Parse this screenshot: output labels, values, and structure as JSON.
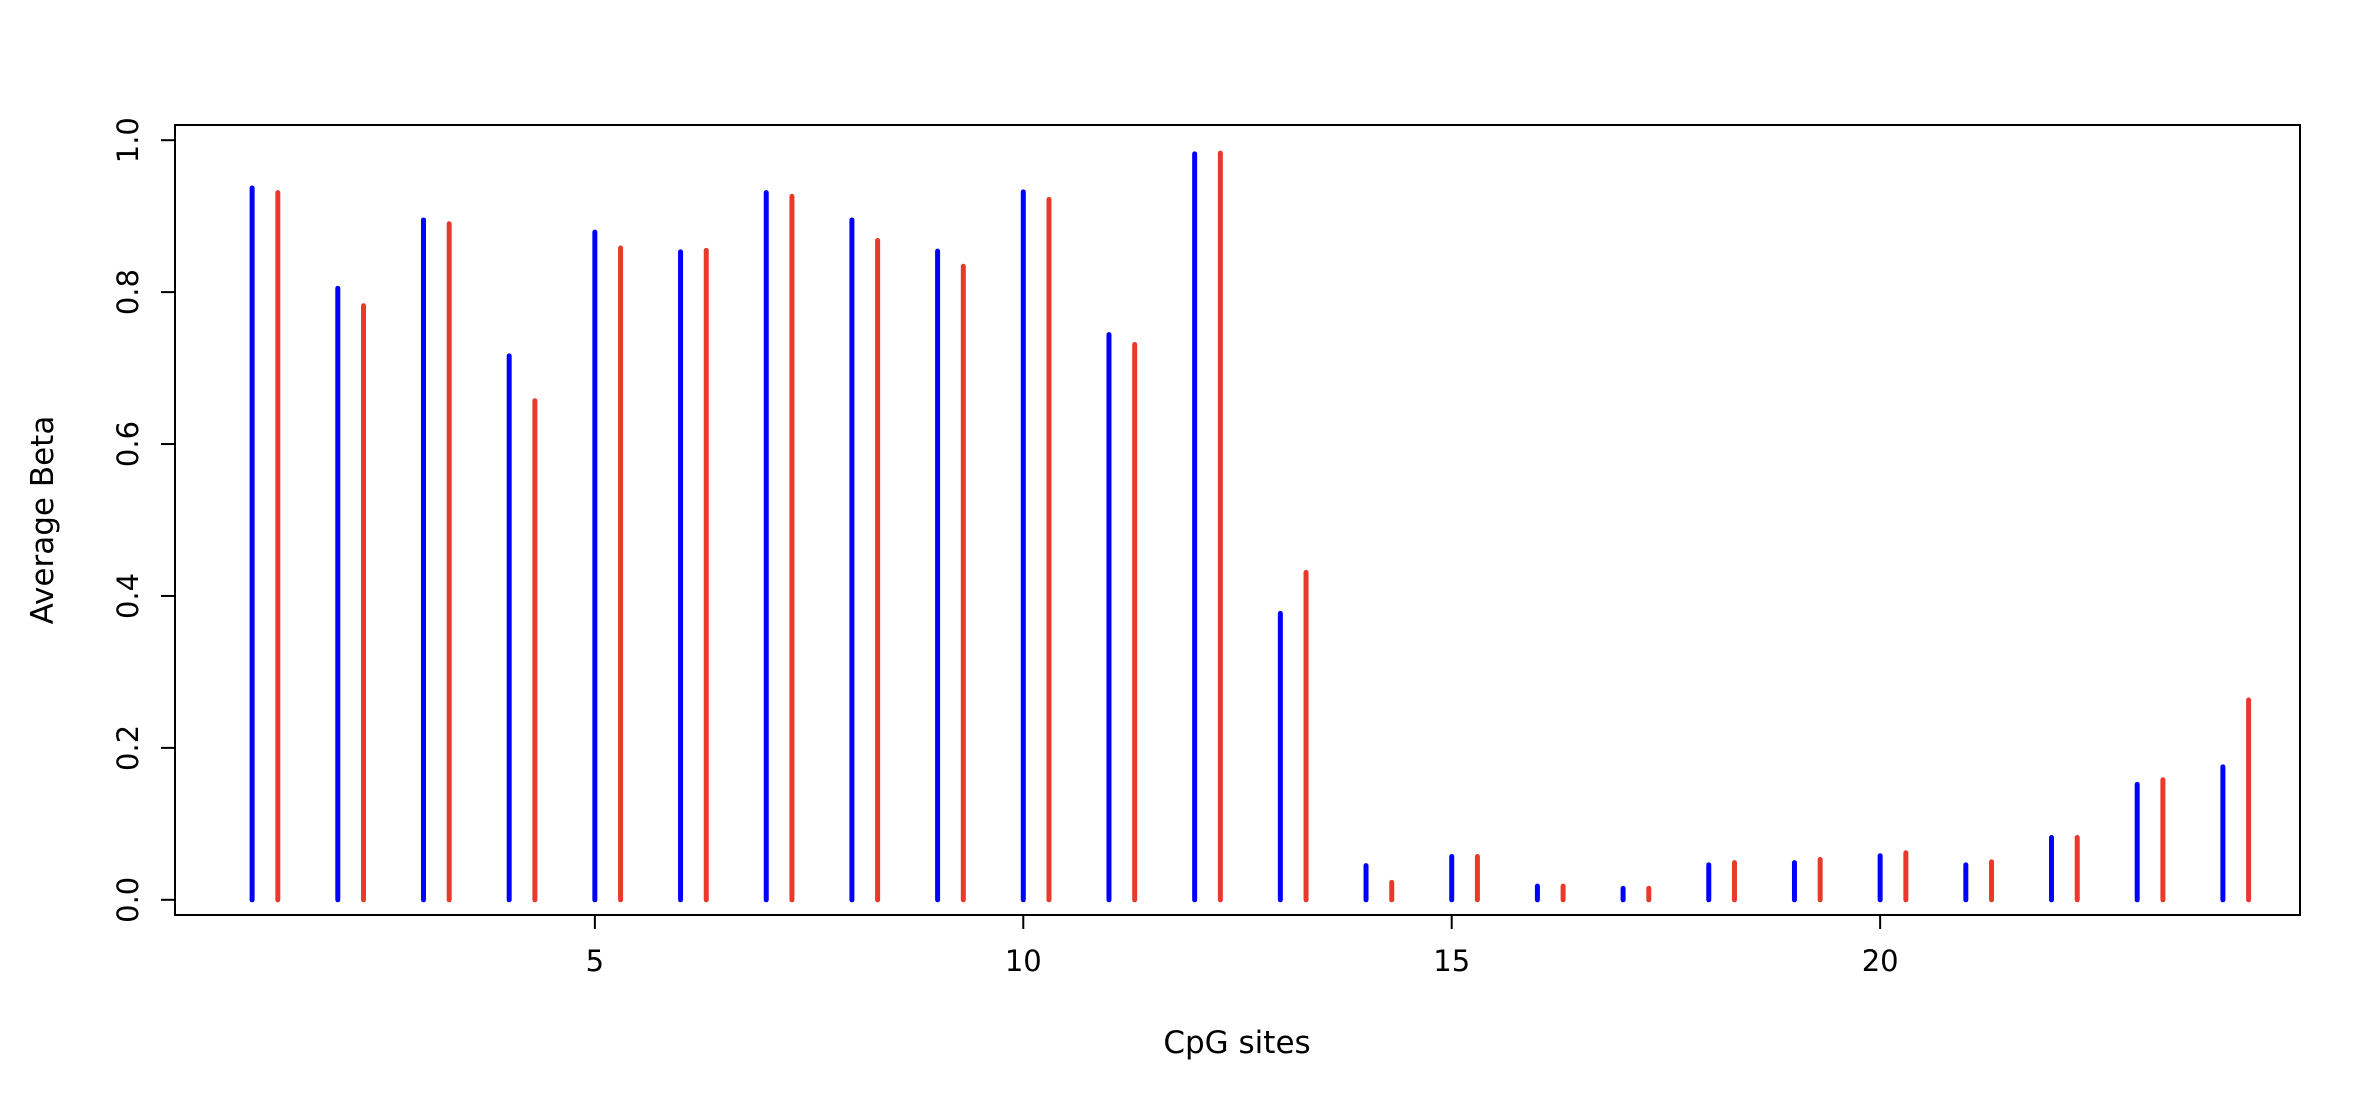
{
  "chart_data": {
    "type": "bar",
    "title": "",
    "xlabel": "CpG sites",
    "ylabel": "Average Beta",
    "xlim": [
      0.1,
      24.9
    ],
    "ylim": [
      -0.02,
      1.02
    ],
    "x_ticks": [
      5,
      10,
      15,
      20
    ],
    "y_ticks": [
      0.0,
      0.2,
      0.4,
      0.6,
      0.8,
      1.0
    ],
    "y_tick_labels": [
      "0.0",
      "0.2",
      "0.4",
      "0.6",
      "0.8",
      "1.0"
    ],
    "x_tick_labels": [
      "5",
      "10",
      "15",
      "20"
    ],
    "grid": false,
    "legend": "none",
    "x": [
      1,
      2,
      3,
      4,
      5,
      6,
      7,
      8,
      9,
      10,
      11,
      12,
      13,
      14,
      15,
      16,
      17,
      18,
      19,
      20,
      21,
      22,
      23,
      24
    ],
    "series": [
      {
        "color": "#0000ff",
        "offset": 0,
        "values": [
          0.937,
          0.805,
          0.895,
          0.716,
          0.879,
          0.853,
          0.931,
          0.895,
          0.854,
          0.932,
          0.744,
          0.982,
          0.377,
          0.045,
          0.057,
          0.018,
          0.015,
          0.046,
          0.049,
          0.058,
          0.046,
          0.082,
          0.152,
          0.175
        ]
      },
      {
        "color": "#e8392b",
        "offset": 0.3,
        "values": [
          0.931,
          0.782,
          0.89,
          0.657,
          0.858,
          0.855,
          0.926,
          0.868,
          0.834,
          0.922,
          0.731,
          0.983,
          0.431,
          0.023,
          0.057,
          0.018,
          0.015,
          0.049,
          0.053,
          0.062,
          0.05,
          0.082,
          0.158,
          0.263
        ]
      }
    ]
  }
}
